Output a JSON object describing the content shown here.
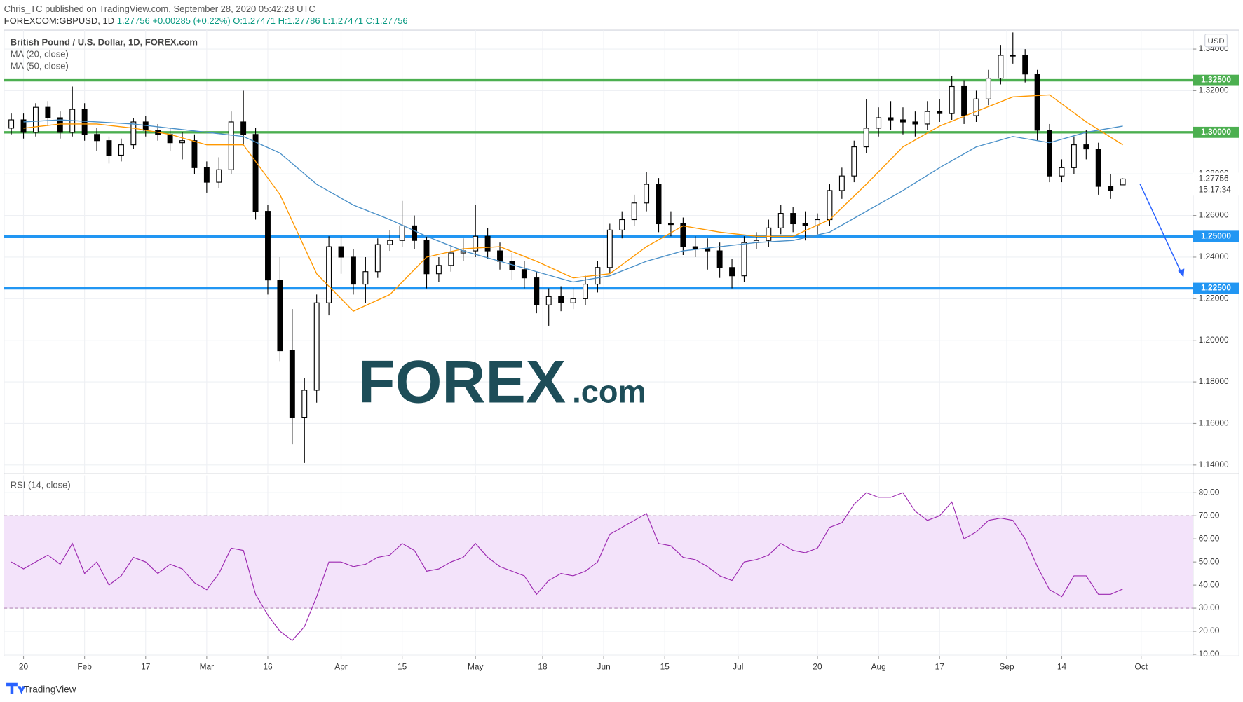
{
  "header": {
    "publisher": "Chris_TC published on TradingView.com, September 28, 2020 05:42:28 UTC",
    "symbol": "FOREXCOM:GBPUSD, 1D",
    "price": "1.27756",
    "change": "+0.00285 (+0.22%)",
    "ohlc": "O:1.27471 H:1.27786 L:1.27471 C:1.27756"
  },
  "watermark": {
    "text": "FOREX",
    "suffix": ".com"
  },
  "footer": {
    "brand": "TradingView"
  },
  "chart_data": [
    {
      "type": "candlestick",
      "title": "British Pound / U.S. Dollar, 1D, FOREX.com",
      "currency": "USD",
      "grid": true,
      "x": [
        -2,
        0,
        2,
        4,
        6,
        8,
        10,
        12,
        14,
        16,
        18,
        20,
        22,
        24,
        26,
        28,
        30,
        32,
        34,
        36,
        38,
        40,
        42,
        44,
        46,
        48,
        50,
        52,
        54,
        56,
        58,
        60,
        62,
        64,
        66,
        68,
        70,
        72,
        74,
        76,
        78,
        80,
        82,
        84,
        86,
        88,
        90,
        92,
        94,
        96,
        98,
        100,
        102,
        104,
        106,
        108,
        110,
        112,
        114,
        116,
        118,
        120,
        122,
        124,
        126,
        128,
        130,
        132,
        134,
        136,
        138,
        140,
        142,
        144,
        146,
        148,
        150,
        152,
        154,
        156,
        158,
        160,
        162,
        164,
        166,
        168,
        170,
        172,
        174,
        176,
        178,
        180
      ],
      "xlim": [
        -3.2,
        191.5
      ],
      "xticks": [
        {
          "value": 0,
          "label": "20"
        },
        {
          "value": 10,
          "label": "Feb"
        },
        {
          "value": 20,
          "label": "17"
        },
        {
          "value": 30,
          "label": "Mar"
        },
        {
          "value": 40,
          "label": "16"
        },
        {
          "value": 52,
          "label": "Apr"
        },
        {
          "value": 62,
          "label": "15"
        },
        {
          "value": 74,
          "label": "May"
        },
        {
          "value": 85,
          "label": "18"
        },
        {
          "value": 95,
          "label": "Jun"
        },
        {
          "value": 105,
          "label": "15"
        },
        {
          "value": 117,
          "label": "Jul"
        },
        {
          "value": 130,
          "label": "20"
        },
        {
          "value": 140,
          "label": "Aug"
        },
        {
          "value": 150,
          "label": "17"
        },
        {
          "value": 161,
          "label": "Sep"
        },
        {
          "value": 170,
          "label": "14"
        },
        {
          "value": 183,
          "label": "Oct"
        }
      ],
      "ylim": [
        1.1362,
        1.3491
      ],
      "yticks": [
        {
          "value": 1.14,
          "label": "1.14000"
        },
        {
          "value": 1.16,
          "label": "1.16000"
        },
        {
          "value": 1.18,
          "label": "1.18000"
        },
        {
          "value": 1.2,
          "label": "1.20000"
        },
        {
          "value": 1.22,
          "label": "1.22000"
        },
        {
          "value": 1.24,
          "label": "1.24000"
        },
        {
          "value": 1.26,
          "label": "1.26000"
        },
        {
          "value": 1.28,
          "label": "1.28000"
        },
        {
          "value": 1.3,
          "label": "1.30000"
        },
        {
          "value": 1.32,
          "label": "1.32000"
        },
        {
          "value": 1.34,
          "label": "1.34000"
        }
      ],
      "candles": {
        "up_color": "#ffffff",
        "down_color": "#000000",
        "open": [
          1.302,
          1.306,
          1.3,
          1.312,
          1.307,
          1.3,
          1.311,
          1.299,
          1.296,
          1.289,
          1.294,
          1.305,
          1.301,
          1.299,
          1.295,
          1.296,
          1.283,
          1.276,
          1.282,
          1.305,
          1.299,
          1.262,
          1.229,
          1.195,
          1.163,
          1.176,
          1.218,
          1.245,
          1.24,
          1.227,
          1.233,
          1.246,
          1.248,
          1.255,
          1.248,
          1.232,
          1.236,
          1.242,
          1.243,
          1.25,
          1.243,
          1.238,
          1.234,
          1.23,
          1.217,
          1.221,
          1.218,
          1.22,
          1.227,
          1.235,
          1.253,
          1.258,
          1.266,
          1.275,
          1.256,
          1.256,
          1.245,
          1.244,
          1.243,
          1.235,
          1.231,
          1.247,
          1.248,
          1.254,
          1.261,
          1.256,
          1.255,
          1.258,
          1.272,
          1.279,
          1.293,
          1.302,
          1.307,
          1.306,
          1.305,
          1.304,
          1.31,
          1.309,
          1.322,
          1.308,
          1.316,
          1.326,
          1.337,
          1.337,
          1.328,
          1.301,
          1.279,
          1.283,
          1.294,
          1.292,
          1.274,
          1.27471
        ],
        "high": [
          1.309,
          1.309,
          1.314,
          1.315,
          1.31,
          1.322,
          1.314,
          1.302,
          1.298,
          1.297,
          1.307,
          1.308,
          1.304,
          1.302,
          1.3,
          1.299,
          1.286,
          1.288,
          1.31,
          1.32,
          1.302,
          1.265,
          1.24,
          1.215,
          1.182,
          1.222,
          1.25,
          1.25,
          1.244,
          1.24,
          1.249,
          1.253,
          1.267,
          1.26,
          1.25,
          1.24,
          1.246,
          1.249,
          1.265,
          1.254,
          1.247,
          1.242,
          1.238,
          1.233,
          1.225,
          1.226,
          1.225,
          1.231,
          1.238,
          1.256,
          1.262,
          1.27,
          1.281,
          1.278,
          1.262,
          1.259,
          1.25,
          1.249,
          1.247,
          1.239,
          1.25,
          1.252,
          1.258,
          1.265,
          1.264,
          1.262,
          1.261,
          1.275,
          1.283,
          1.296,
          1.316,
          1.312,
          1.315,
          1.312,
          1.31,
          1.315,
          1.316,
          1.327,
          1.325,
          1.32,
          1.33,
          1.342,
          1.348,
          1.34,
          1.33,
          1.304,
          1.287,
          1.298,
          1.301,
          1.295,
          1.28,
          1.27786
        ],
        "low": [
          1.299,
          1.297,
          1.298,
          1.303,
          1.297,
          1.298,
          1.296,
          1.291,
          1.285,
          1.286,
          1.292,
          1.298,
          1.296,
          1.291,
          1.287,
          1.28,
          1.271,
          1.273,
          1.28,
          1.294,
          1.258,
          1.222,
          1.19,
          1.15,
          1.141,
          1.17,
          1.212,
          1.232,
          1.222,
          1.218,
          1.23,
          1.243,
          1.245,
          1.244,
          1.225,
          1.228,
          1.233,
          1.238,
          1.24,
          1.239,
          1.234,
          1.229,
          1.225,
          1.213,
          1.207,
          1.214,
          1.215,
          1.217,
          1.223,
          1.232,
          1.249,
          1.255,
          1.262,
          1.252,
          1.25,
          1.241,
          1.24,
          1.234,
          1.23,
          1.225,
          1.228,
          1.244,
          1.245,
          1.251,
          1.252,
          1.248,
          1.251,
          1.255,
          1.268,
          1.276,
          1.29,
          1.298,
          1.301,
          1.299,
          1.298,
          1.301,
          1.305,
          1.306,
          1.304,
          1.305,
          1.313,
          1.323,
          1.333,
          1.324,
          1.296,
          1.276,
          1.276,
          1.28,
          1.287,
          1.27,
          1.268,
          1.27471
        ],
        "close": [
          1.306,
          1.3,
          1.312,
          1.307,
          1.3,
          1.311,
          1.299,
          1.296,
          1.289,
          1.294,
          1.305,
          1.301,
          1.299,
          1.295,
          1.296,
          1.283,
          1.276,
          1.282,
          1.305,
          1.299,
          1.262,
          1.229,
          1.195,
          1.163,
          1.176,
          1.218,
          1.245,
          1.24,
          1.227,
          1.233,
          1.246,
          1.248,
          1.255,
          1.248,
          1.232,
          1.236,
          1.242,
          1.243,
          1.25,
          1.243,
          1.238,
          1.234,
          1.23,
          1.217,
          1.221,
          1.218,
          1.22,
          1.227,
          1.235,
          1.253,
          1.258,
          1.266,
          1.275,
          1.256,
          1.256,
          1.245,
          1.244,
          1.243,
          1.235,
          1.231,
          1.247,
          1.248,
          1.254,
          1.261,
          1.256,
          1.255,
          1.258,
          1.272,
          1.279,
          1.293,
          1.302,
          1.307,
          1.306,
          1.305,
          1.304,
          1.31,
          1.309,
          1.322,
          1.308,
          1.316,
          1.326,
          1.337,
          1.337,
          1.328,
          1.301,
          1.279,
          1.283,
          1.294,
          1.292,
          1.274,
          1.272,
          1.27756
        ]
      },
      "series": [
        {
          "name": "MA (20, close)",
          "color": "#ff9800",
          "x": [
            0,
            6,
            12,
            18,
            24,
            30,
            36,
            42,
            48,
            54,
            60,
            66,
            72,
            78,
            84,
            90,
            96,
            102,
            108,
            114,
            120,
            126,
            132,
            138,
            144,
            150,
            156,
            162,
            168,
            174,
            180
          ],
          "values": [
            1.302,
            1.304,
            1.304,
            1.302,
            1.299,
            1.294,
            1.294,
            1.27,
            1.232,
            1.214,
            1.222,
            1.24,
            1.244,
            1.245,
            1.238,
            1.23,
            1.232,
            1.245,
            1.255,
            1.252,
            1.25,
            1.25,
            1.258,
            1.275,
            1.293,
            1.303,
            1.31,
            1.317,
            1.318,
            1.305,
            1.294
          ]
        },
        {
          "name": "MA (50, close)",
          "color": "#4a90c8",
          "x": [
            0,
            6,
            12,
            18,
            24,
            30,
            36,
            42,
            48,
            54,
            60,
            66,
            72,
            78,
            84,
            90,
            96,
            102,
            108,
            114,
            120,
            126,
            132,
            138,
            144,
            150,
            156,
            162,
            168,
            174,
            180
          ],
          "values": [
            1.305,
            1.306,
            1.305,
            1.304,
            1.302,
            1.3,
            1.298,
            1.29,
            1.275,
            1.265,
            1.258,
            1.25,
            1.243,
            1.238,
            1.233,
            1.228,
            1.231,
            1.238,
            1.243,
            1.245,
            1.247,
            1.248,
            1.252,
            1.262,
            1.272,
            1.283,
            1.293,
            1.298,
            1.295,
            1.3,
            1.303
          ]
        }
      ],
      "levels": [
        {
          "value": 1.325,
          "label": "1.32500",
          "color": "#4caf50"
        },
        {
          "value": 1.3,
          "label": "1.30000",
          "color": "#4caf50"
        },
        {
          "value": 1.25,
          "label": "1.25000",
          "color": "#2196f3"
        },
        {
          "value": 1.225,
          "label": "1.22500",
          "color": "#2196f3"
        }
      ],
      "last_price": {
        "value": 1.27756,
        "label": "1.27756"
      },
      "countdown": "15:17:34"
    },
    {
      "type": "line",
      "title": "RSI (14, close)",
      "grid": true,
      "x": [
        -2,
        0,
        2,
        4,
        6,
        8,
        10,
        12,
        14,
        16,
        18,
        20,
        22,
        24,
        26,
        28,
        30,
        32,
        34,
        36,
        38,
        40,
        42,
        44,
        46,
        48,
        50,
        52,
        54,
        56,
        58,
        60,
        62,
        64,
        66,
        68,
        70,
        72,
        74,
        76,
        78,
        80,
        82,
        84,
        86,
        88,
        90,
        92,
        94,
        96,
        98,
        100,
        102,
        104,
        106,
        108,
        110,
        112,
        114,
        116,
        118,
        120,
        122,
        124,
        126,
        128,
        130,
        132,
        134,
        136,
        138,
        140,
        142,
        144,
        146,
        148,
        150,
        152,
        154,
        156,
        158,
        160,
        162,
        164,
        166,
        168,
        170,
        172,
        174,
        176,
        178,
        180
      ],
      "ylim": [
        9.3,
        87.5
      ],
      "yticks": [
        {
          "value": 10,
          "label": "10.00"
        },
        {
          "value": 20,
          "label": "20.00"
        },
        {
          "value": 30,
          "label": "30.00"
        },
        {
          "value": 40,
          "label": "40.00"
        },
        {
          "value": 50,
          "label": "50.00"
        },
        {
          "value": 60,
          "label": "60.00"
        },
        {
          "value": 70,
          "label": "70.00"
        },
        {
          "value": 80,
          "label": "80.00"
        }
      ],
      "band": [
        30,
        70
      ],
      "band_color": "#f3e3fa",
      "series": [
        {
          "color": "#9c27b0",
          "values": [
            50,
            47,
            50,
            53,
            49,
            58,
            45,
            50,
            40,
            44,
            52,
            50,
            45,
            49,
            47,
            41,
            38,
            45,
            56,
            55,
            36,
            27,
            20,
            16,
            22,
            35,
            50,
            50,
            48,
            49,
            52,
            53,
            58,
            55,
            46,
            47,
            50,
            52,
            58,
            52,
            48,
            46,
            44,
            36,
            42,
            45,
            44,
            46,
            50,
            62,
            65,
            68,
            71,
            58,
            57,
            52,
            51,
            48,
            44,
            42,
            50,
            51,
            53,
            58,
            55,
            54,
            56,
            65,
            67,
            75,
            80,
            78,
            78,
            80,
            72,
            68,
            70,
            76,
            60,
            63,
            68,
            69,
            68,
            60,
            48,
            38,
            35,
            44,
            44,
            36,
            36,
            38.3
          ]
        }
      ]
    }
  ]
}
